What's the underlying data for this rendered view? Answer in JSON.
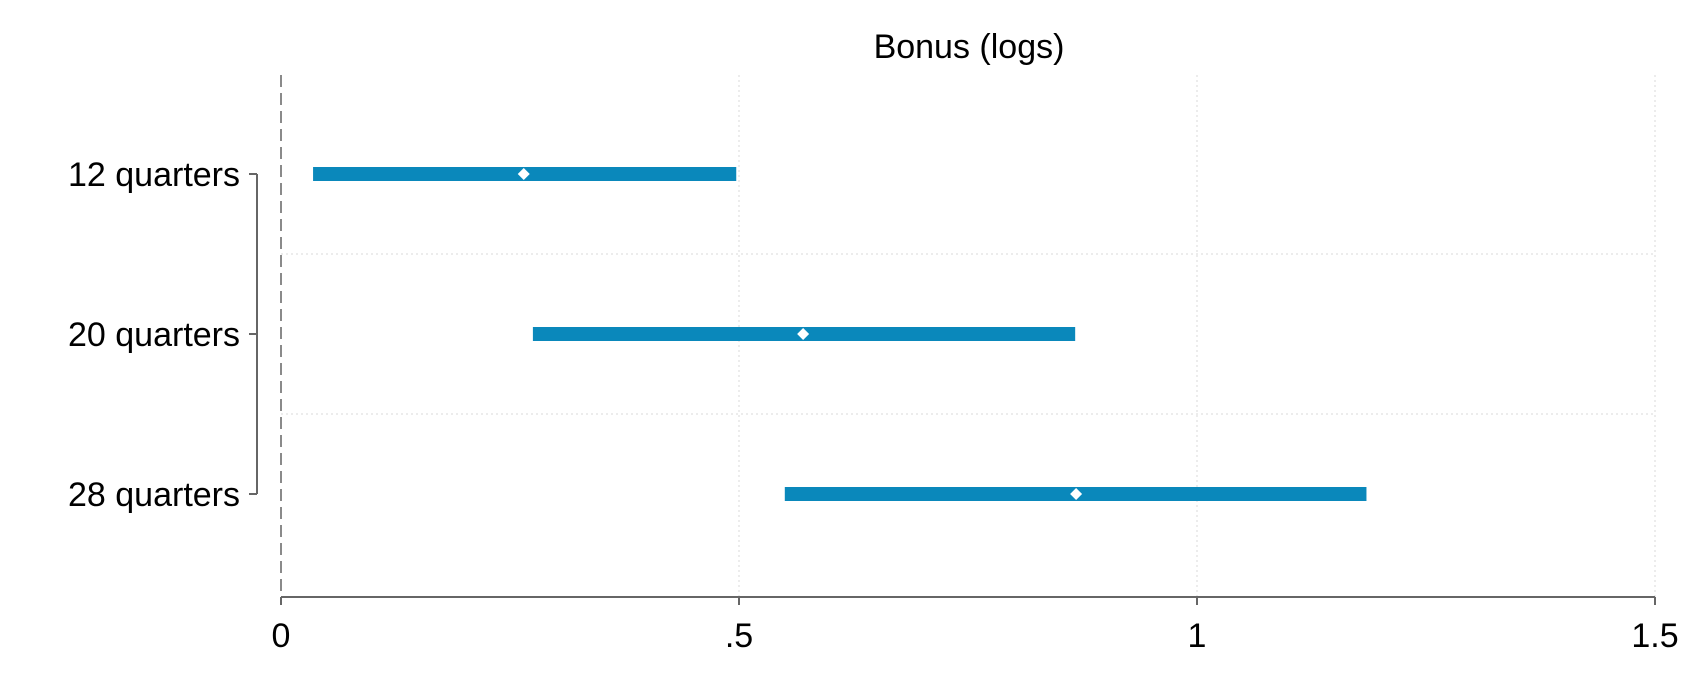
{
  "chart_data": {
    "type": "coefficient-plot",
    "title": "Bonus (logs)",
    "xlabel": "",
    "ylabel": "",
    "xlim": [
      0,
      1.5
    ],
    "x_ticks": [
      {
        "value": 0,
        "label": "0"
      },
      {
        "value": 0.5,
        "label": ".5"
      },
      {
        "value": 1,
        "label": "1"
      },
      {
        "value": 1.5,
        "label": "1.5"
      }
    ],
    "categories": [
      "12 quarters",
      "20 quarters",
      "28 quarters"
    ],
    "series": [
      {
        "point_estimates": [
          0.265,
          0.57,
          0.868
        ],
        "ci_lower": [
          0.035,
          0.275,
          0.55
        ],
        "ci_upper": [
          0.497,
          0.867,
          1.185
        ]
      }
    ],
    "reference_line": {
      "value": 0,
      "style": "dashed"
    },
    "grid": true,
    "colors": {
      "ci_bar": "#0a88bb",
      "point_marker": "#ffffff",
      "axis": "#666666",
      "grid": "#e6e6e6",
      "reference_line": "#8a8a8a",
      "text": "#000000"
    }
  }
}
